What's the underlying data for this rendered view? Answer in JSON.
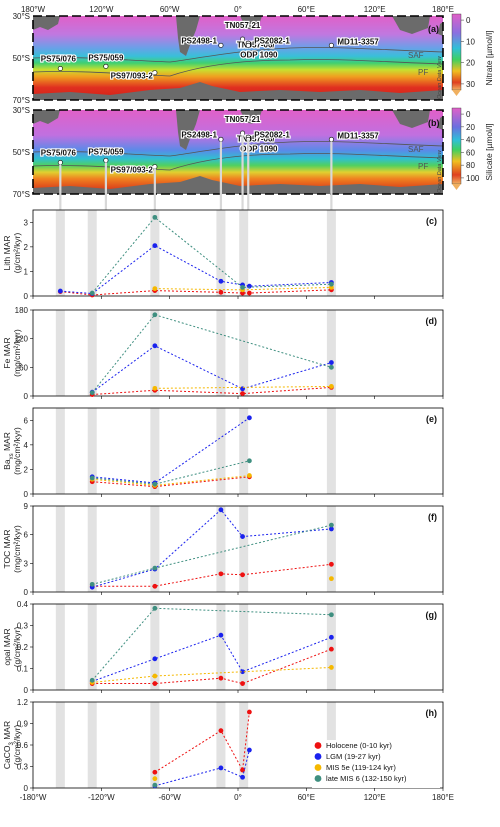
{
  "chart_data": [
    {
      "type": "map",
      "panel": "(a)",
      "colorbar": {
        "label": "Nitrate [µmol/l]",
        "ticks": [
          "0",
          "10",
          "20",
          "30"
        ]
      },
      "lat_ticks": [
        "30°S",
        "50°S",
        "70°S"
      ],
      "lon_ticks": [
        "180°W",
        "120°W",
        "60°W",
        "0°",
        "60°E",
        "120°E",
        "180°E"
      ],
      "fronts": [
        "SAF",
        "PF"
      ],
      "watermark": "Ocean Data View",
      "sites": [
        {
          "name": "PS75/076",
          "lon": -156,
          "lat": -55
        },
        {
          "name": "PS75/059",
          "lon": -116,
          "lat": -54
        },
        {
          "name": "PS97/093-2",
          "lon": -73,
          "lat": -57
        },
        {
          "name": "PS2498-1",
          "lon": -15,
          "lat": -44
        },
        {
          "name": "TN057-21",
          "lon": 4,
          "lat": -41
        },
        {
          "name": "TN057-06/",
          "lon": 6,
          "lat": -43
        },
        {
          "name": "ODP 1090",
          "lon": 9,
          "lat": -43
        },
        {
          "name": "PS2082-1",
          "lon": 9,
          "lat": -44
        },
        {
          "name": "MD11-3357",
          "lon": 82,
          "lat": -44
        }
      ]
    },
    {
      "type": "map",
      "panel": "(b)",
      "colorbar": {
        "label": "Silicate [µmol/l]",
        "ticks": [
          "0",
          "20",
          "40",
          "60",
          "80",
          "100"
        ]
      },
      "lat_ticks": [
        "30°S",
        "50°S",
        "70°S"
      ],
      "fronts": [
        "SAF",
        "PF"
      ],
      "watermark": "Ocean Data View",
      "sites": [
        {
          "name": "PS75/076",
          "lon": -156,
          "lat": -55
        },
        {
          "name": "PS75/059",
          "lon": -116,
          "lat": -54
        },
        {
          "name": "PS97/093-2",
          "lon": -73,
          "lat": -57
        },
        {
          "name": "PS2498-1",
          "lon": -15,
          "lat": -44
        },
        {
          "name": "TN057-21",
          "lon": 4,
          "lat": -41
        },
        {
          "name": "TN057-06/",
          "lon": 6,
          "lat": -43
        },
        {
          "name": "ODP 1090",
          "lon": 9,
          "lat": -43
        },
        {
          "name": "PS2082-1",
          "lon": 9,
          "lat": -44
        },
        {
          "name": "MD11-3357",
          "lon": 82,
          "lat": -44
        }
      ]
    },
    {
      "type": "scatter-line",
      "panel": "(c)",
      "ylabel": "Lith MAR",
      "yunit": "(g/cm²/kyr)",
      "ylim": [
        0,
        3.5
      ],
      "yticks": [
        "0",
        "1",
        "2",
        "3"
      ],
      "ytickvals": [
        0,
        1,
        2,
        3
      ],
      "series": [
        {
          "name": "Holocene (0-10 kyr)",
          "color": "#ee1111",
          "points": [
            [
              -156,
              0.18
            ],
            [
              -128,
              0.04
            ],
            [
              -73,
              0.22
            ],
            [
              -15,
              0.15
            ],
            [
              4,
              0.12
            ],
            [
              10,
              0.12
            ],
            [
              82,
              0.25
            ]
          ]
        },
        {
          "name": "LGM (19-27 kyr)",
          "color": "#1a22ee",
          "points": [
            [
              -156,
              0.2
            ],
            [
              -128,
              0.1
            ],
            [
              -73,
              2.05
            ],
            [
              -15,
              0.6
            ],
            [
              4,
              0.45
            ],
            [
              10,
              0.4
            ],
            [
              82,
              0.55
            ]
          ]
        },
        {
          "name": "MIS 5e (119-124 kyr)",
          "color": "#f5b800",
          "points": [
            [
              -73,
              0.3
            ],
            [
              4,
              0.25
            ],
            [
              82,
              0.35
            ]
          ]
        },
        {
          "name": "late MIS 6 (132-150 kyr)",
          "color": "#3f8f80",
          "points": [
            [
              -128,
              0.12
            ],
            [
              -73,
              3.2
            ],
            [
              4,
              0.35
            ],
            [
              82,
              0.48
            ]
          ]
        }
      ]
    },
    {
      "type": "scatter-line",
      "panel": "(d)",
      "ylabel": "Fe MAR",
      "yunit": "(mg/cm²/kyr)",
      "ylim": [
        0,
        180
      ],
      "yticks": [
        "0",
        "60",
        "120",
        "180"
      ],
      "ytickvals": [
        0,
        60,
        120,
        180
      ],
      "series": [
        {
          "name": "Holocene (0-10 kyr)",
          "color": "#ee1111",
          "points": [
            [
              -128,
              3
            ],
            [
              -73,
              12
            ],
            [
              4,
              5
            ],
            [
              82,
              18
            ]
          ]
        },
        {
          "name": "LGM (19-27 kyr)",
          "color": "#1a22ee",
          "points": [
            [
              -128,
              8
            ],
            [
              -73,
              105
            ],
            [
              4,
              15
            ],
            [
              82,
              70
            ]
          ]
        },
        {
          "name": "MIS 5e (119-124 kyr)",
          "color": "#f5b800",
          "points": [
            [
              -73,
              16
            ],
            [
              82,
              20
            ]
          ]
        },
        {
          "name": "late MIS 6 (132-150 kyr)",
          "color": "#3f8f80",
          "points": [
            [
              -128,
              7
            ],
            [
              -73,
              170
            ],
            [
              82,
              60
            ]
          ]
        }
      ]
    },
    {
      "type": "scatter-line",
      "panel": "(e)",
      "ylabel": "Baxs MAR",
      "yunit": "(mg/cm²/kyr)",
      "ylim": [
        0,
        7
      ],
      "yticks": [
        "0",
        "2",
        "4",
        "6"
      ],
      "ytickvals": [
        0,
        2,
        4,
        6
      ],
      "series": [
        {
          "name": "Holocene (0-10 kyr)",
          "color": "#ee1111",
          "points": [
            [
              -128,
              1.0
            ],
            [
              -73,
              0.6
            ],
            [
              10,
              1.4
            ]
          ]
        },
        {
          "name": "LGM (19-27 kyr)",
          "color": "#1a22ee",
          "points": [
            [
              -128,
              1.4
            ],
            [
              -73,
              0.9
            ],
            [
              10,
              6.2
            ]
          ]
        },
        {
          "name": "MIS 5e (119-124 kyr)",
          "color": "#f5b800",
          "points": [
            [
              -128,
              1.2
            ],
            [
              -73,
              0.7
            ],
            [
              10,
              1.5
            ]
          ]
        },
        {
          "name": "late MIS 6 (132-150 kyr)",
          "color": "#3f8f80",
          "points": [
            [
              -128,
              1.3
            ],
            [
              -73,
              0.8
            ],
            [
              10,
              2.7
            ]
          ]
        }
      ]
    },
    {
      "type": "scatter-line",
      "panel": "(f)",
      "ylabel": "TOC MAR",
      "yunit": "(mg/cm²/kyr)",
      "ylim": [
        0,
        9
      ],
      "yticks": [
        "0",
        "3",
        "6",
        "9"
      ],
      "ytickvals": [
        0,
        3,
        6,
        9
      ],
      "series": [
        {
          "name": "Holocene (0-10 kyr)",
          "color": "#ee1111",
          "points": [
            [
              -128,
              0.6
            ],
            [
              -73,
              0.6
            ],
            [
              -15,
              1.9
            ],
            [
              4,
              1.8
            ],
            [
              82,
              2.9
            ]
          ]
        },
        {
          "name": "LGM (19-27 kyr)",
          "color": "#1a22ee",
          "points": [
            [
              -128,
              0.5
            ],
            [
              -73,
              2.4
            ],
            [
              -15,
              8.6
            ],
            [
              4,
              5.8
            ],
            [
              82,
              6.6
            ]
          ]
        },
        {
          "name": "MIS 5e (119-124 kyr)",
          "color": "#f5b800",
          "points": [
            [
              82,
              1.4
            ]
          ]
        },
        {
          "name": "late MIS 6 (132-150 kyr)",
          "color": "#3f8f80",
          "points": [
            [
              -128,
              0.8
            ],
            [
              -73,
              2.5
            ],
            [
              82,
              7.0
            ]
          ]
        }
      ]
    },
    {
      "type": "scatter-line",
      "panel": "(g)",
      "ylabel": "opal MAR",
      "yunit": "(g/cm²/kyr)",
      "ylim": [
        0,
        0.4
      ],
      "yticks": [
        "0",
        "0.1",
        "0.2",
        "0.3",
        "0.4"
      ],
      "ytickvals": [
        0,
        0.1,
        0.2,
        0.3,
        0.4
      ],
      "series": [
        {
          "name": "Holocene (0-10 kyr)",
          "color": "#ee1111",
          "points": [
            [
              -128,
              0.03
            ],
            [
              -73,
              0.03
            ],
            [
              -15,
              0.055
            ],
            [
              4,
              0.03
            ],
            [
              82,
              0.19
            ]
          ]
        },
        {
          "name": "LGM (19-27 kyr)",
          "color": "#1a22ee",
          "points": [
            [
              -128,
              0.04
            ],
            [
              -73,
              0.145
            ],
            [
              -15,
              0.255
            ],
            [
              4,
              0.085
            ],
            [
              82,
              0.245
            ]
          ]
        },
        {
          "name": "MIS 5e (119-124 kyr)",
          "color": "#f5b800",
          "points": [
            [
              -128,
              0.035
            ],
            [
              -73,
              0.065
            ],
            [
              82,
              0.105
            ]
          ]
        },
        {
          "name": "late MIS 6 (132-150 kyr)",
          "color": "#3f8f80",
          "points": [
            [
              -128,
              0.045
            ],
            [
              -73,
              0.38
            ],
            [
              82,
              0.35
            ]
          ]
        }
      ]
    },
    {
      "type": "scatter-line",
      "panel": "(h)",
      "ylabel": "CaCO3 MAR",
      "yunit": "(g/cm²/kyr)",
      "ylim": [
        0,
        1.2
      ],
      "yticks": [
        "0",
        "0.3",
        "0.6",
        "0.9",
        "1.2"
      ],
      "ytickvals": [
        0,
        0.3,
        0.6,
        0.9,
        1.2
      ],
      "xlim": [
        -180,
        180
      ],
      "xticks": [
        "-180°W",
        "-120°W",
        "-60°W",
        "0°",
        "60°E",
        "120°E",
        "180°E"
      ],
      "series": [
        {
          "name": "Holocene (0-10 kyr)",
          "color": "#ee1111",
          "points": [
            [
              -73,
              0.22
            ],
            [
              -15,
              0.8
            ],
            [
              4,
              0.25
            ],
            [
              10,
              1.06
            ]
          ]
        },
        {
          "name": "LGM (19-27 kyr)",
          "color": "#1a22ee",
          "points": [
            [
              -73,
              0.03
            ],
            [
              -15,
              0.28
            ],
            [
              4,
              0.15
            ],
            [
              10,
              0.53
            ]
          ]
        },
        {
          "name": "MIS 5e (119-124 kyr)",
          "color": "#f5b800",
          "points": [
            [
              -73,
              0.13
            ]
          ]
        },
        {
          "name": "late MIS 6 (132-150 kyr)",
          "color": "#3f8f80",
          "points": [
            [
              -73,
              0.04
            ]
          ]
        }
      ]
    }
  ],
  "legend": [
    {
      "label": "Holocene (0-10 kyr)",
      "color": "#ee1111"
    },
    {
      "label": "LGM (19-27 kyr)",
      "color": "#1a22ee"
    },
    {
      "label": "MIS 5e (119-124 kyr)",
      "color": "#f5b800"
    },
    {
      "label": "late MIS 6 (132-150 kyr)",
      "color": "#3f8f80"
    }
  ],
  "highlight_lons": [
    -156,
    -128,
    -73,
    -15,
    5,
    82
  ]
}
